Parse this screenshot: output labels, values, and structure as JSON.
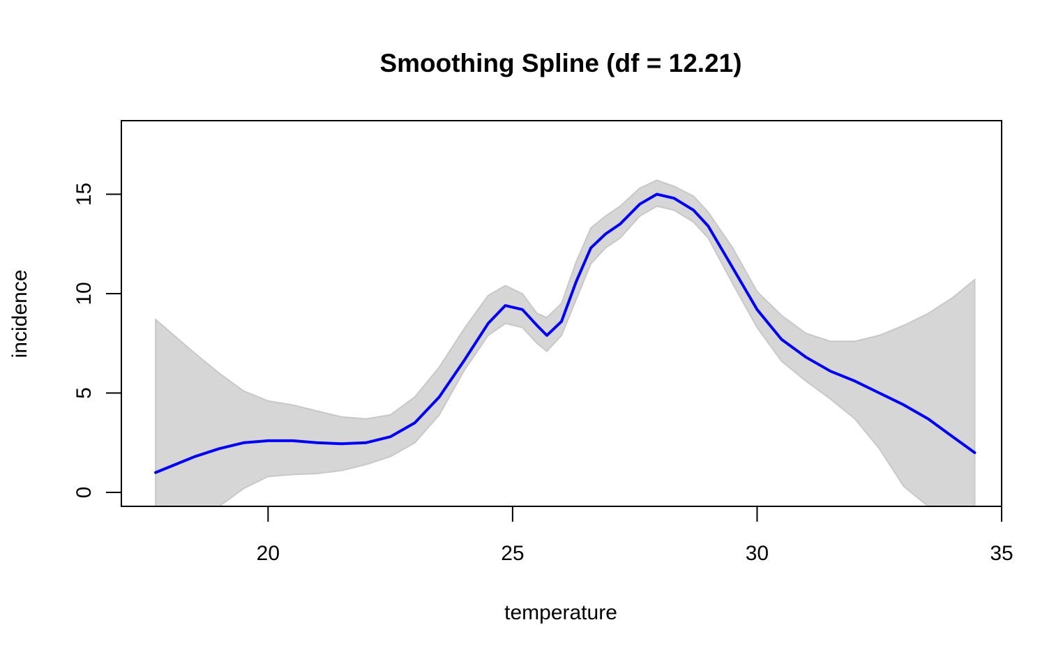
{
  "chart_data": {
    "type": "line",
    "title": "Smoothing Spline (df = 12.21)",
    "xlabel": "temperature",
    "ylabel": "incidence",
    "xlim": [
      17.0,
      35.0
    ],
    "ylim": [
      -0.7,
      18.7
    ],
    "xticks": [
      20,
      25,
      30,
      35
    ],
    "yticks": [
      0,
      5,
      10,
      15
    ],
    "grid": false,
    "legend": "none",
    "colors": {
      "line": "#0000ff",
      "band": "#d6d6d6",
      "band_edge": "#c8c8c8",
      "axis": "#000000"
    },
    "series": [
      {
        "kind": "fit",
        "x": [
          17.7,
          18.5,
          19.0,
          19.5,
          20.0,
          20.5,
          21.0,
          21.5,
          22.0,
          22.5,
          23.0,
          23.5,
          24.0,
          24.5,
          24.85,
          25.2,
          25.5,
          25.7,
          26.0,
          26.3,
          26.6,
          26.9,
          27.2,
          27.6,
          27.95,
          28.3,
          28.7,
          29.0,
          29.5,
          30.0,
          30.5,
          31.0,
          31.5,
          32.0,
          32.5,
          33.0,
          33.5,
          34.0,
          34.45
        ],
        "y": [
          1.0,
          1.8,
          2.2,
          2.5,
          2.6,
          2.6,
          2.5,
          2.45,
          2.5,
          2.8,
          3.5,
          4.8,
          6.6,
          8.5,
          9.4,
          9.2,
          8.4,
          7.9,
          8.6,
          10.6,
          12.3,
          13.0,
          13.5,
          14.5,
          15.0,
          14.8,
          14.2,
          13.4,
          11.3,
          9.2,
          7.7,
          6.8,
          6.1,
          5.6,
          5.0,
          4.4,
          3.7,
          2.8,
          2.0
        ]
      },
      {
        "kind": "band_upper",
        "x": [
          17.7,
          18.5,
          19.0,
          19.5,
          20.0,
          20.5,
          21.0,
          21.5,
          22.0,
          22.5,
          23.0,
          23.5,
          24.0,
          24.5,
          24.85,
          25.2,
          25.5,
          25.7,
          26.0,
          26.3,
          26.6,
          26.9,
          27.2,
          27.6,
          27.95,
          28.3,
          28.7,
          29.0,
          29.5,
          30.0,
          30.5,
          31.0,
          31.5,
          32.0,
          32.5,
          33.0,
          33.5,
          34.0,
          34.45
        ],
        "y": [
          8.7,
          7.0,
          6.0,
          5.1,
          4.6,
          4.4,
          4.1,
          3.8,
          3.7,
          3.9,
          4.8,
          6.3,
          8.2,
          9.9,
          10.4,
          10.0,
          9.0,
          8.8,
          9.5,
          11.6,
          13.3,
          13.9,
          14.4,
          15.3,
          15.7,
          15.4,
          14.9,
          14.1,
          12.3,
          10.1,
          8.9,
          8.0,
          7.6,
          7.6,
          7.9,
          8.4,
          9.0,
          9.8,
          10.7
        ]
      },
      {
        "kind": "band_lower",
        "x": [
          17.7,
          18.5,
          19.0,
          19.5,
          20.0,
          20.5,
          21.0,
          21.5,
          22.0,
          22.5,
          23.0,
          23.5,
          24.0,
          24.5,
          24.85,
          25.2,
          25.5,
          25.7,
          26.0,
          26.3,
          26.6,
          26.9,
          27.2,
          27.6,
          27.95,
          28.3,
          28.7,
          29.0,
          29.5,
          30.0,
          30.5,
          31.0,
          31.5,
          32.0,
          32.5,
          33.0,
          33.5,
          34.0,
          34.45
        ],
        "y": [
          -0.7,
          -0.7,
          -0.7,
          0.2,
          0.8,
          0.9,
          0.95,
          1.1,
          1.4,
          1.8,
          2.5,
          3.9,
          6.1,
          7.9,
          8.5,
          8.3,
          7.5,
          7.1,
          7.9,
          9.7,
          11.5,
          12.3,
          12.8,
          13.9,
          14.4,
          14.2,
          13.6,
          12.8,
          10.5,
          8.3,
          6.6,
          5.6,
          4.7,
          3.7,
          2.2,
          0.3,
          -0.7,
          -0.7,
          -0.7
        ]
      }
    ]
  }
}
